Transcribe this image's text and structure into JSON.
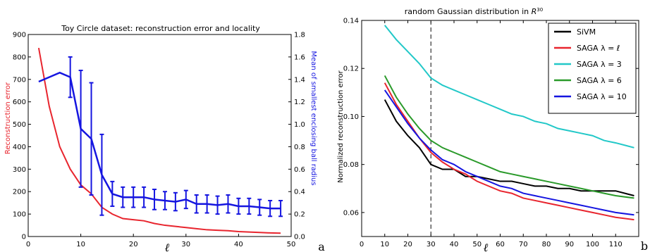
{
  "chart_data": [
    {
      "type": "line",
      "panel_label": "a",
      "title": "Toy Circle dataset: reconstruction error and locality",
      "xlabel": "ℓ",
      "ylabel_left": "Reconstruction error",
      "ylabel_right": "Mean of smallest enclosing ball radius",
      "xlim": [
        0,
        50
      ],
      "ylim_left": [
        0,
        900
      ],
      "ylim_right": [
        0,
        1.8
      ],
      "xticks": [
        0,
        10,
        20,
        30,
        40,
        50
      ],
      "yticks_left": [
        0,
        100,
        200,
        300,
        400,
        500,
        600,
        700,
        800,
        900
      ],
      "yticks_right": [
        0.0,
        0.2,
        0.4,
        0.6,
        0.8,
        1.0,
        1.2,
        1.4,
        1.6,
        1.8
      ],
      "left_color": "#e8252e",
      "right_color": "#1515e0",
      "series": [
        {
          "axis": "left",
          "color": "#e8252e",
          "x": [
            2,
            4,
            6,
            8,
            10,
            12,
            14,
            16,
            18,
            20,
            22,
            24,
            26,
            28,
            30,
            32,
            34,
            36,
            38,
            40,
            42,
            44,
            46,
            48
          ],
          "values": [
            840,
            580,
            400,
            300,
            230,
            190,
            130,
            100,
            80,
            75,
            70,
            58,
            50,
            45,
            40,
            35,
            30,
            28,
            26,
            22,
            20,
            18,
            16,
            15
          ]
        },
        {
          "axis": "right",
          "color": "#1515e0",
          "x": [
            2,
            4,
            6,
            8,
            10,
            12,
            14,
            16,
            18,
            20,
            22,
            24,
            26,
            28,
            30,
            32,
            34,
            36,
            38,
            40,
            42,
            44,
            46,
            48
          ],
          "values": [
            1.38,
            1.42,
            1.46,
            1.42,
            0.96,
            0.87,
            0.55,
            0.38,
            0.35,
            0.35,
            0.35,
            0.33,
            0.32,
            0.31,
            0.33,
            0.29,
            0.29,
            0.28,
            0.29,
            0.27,
            0.27,
            0.26,
            0.25,
            0.25
          ],
          "error": [
            0.02,
            0.02,
            0.02,
            0.18,
            0.52,
            0.5,
            0.36,
            0.11,
            0.09,
            0.09,
            0.09,
            0.09,
            0.08,
            0.08,
            0.08,
            0.08,
            0.08,
            0.08,
            0.08,
            0.07,
            0.07,
            0.07,
            0.07,
            0.07
          ]
        }
      ]
    },
    {
      "type": "line",
      "panel_label": "b",
      "title": "random Gaussian distribution in ",
      "title_math": "R",
      "title_sup": "30",
      "xlabel": "ℓ",
      "ylabel": "Normalized reconstruction error",
      "xlim": [
        0,
        120
      ],
      "ylim": [
        0.05,
        0.14
      ],
      "xticks": [
        0,
        10,
        20,
        30,
        40,
        50,
        60,
        70,
        80,
        90,
        100,
        110
      ],
      "yticks": [
        0.06,
        0.08,
        0.1,
        0.12,
        0.14
      ],
      "vline_x": 30,
      "series": [
        {
          "name": "SiVM",
          "color": "#000000",
          "x": [
            10,
            15,
            20,
            25,
            30,
            35,
            40,
            45,
            50,
            55,
            60,
            65,
            70,
            75,
            80,
            85,
            90,
            95,
            100,
            105,
            110,
            118
          ],
          "values": [
            0.107,
            0.098,
            0.092,
            0.087,
            0.08,
            0.078,
            0.078,
            0.075,
            0.075,
            0.074,
            0.073,
            0.073,
            0.072,
            0.071,
            0.071,
            0.07,
            0.07,
            0.069,
            0.069,
            0.069,
            0.069,
            0.067
          ]
        },
        {
          "name": "SAGA λ = ℓ",
          "color": "#e8252e",
          "x": [
            10,
            15,
            20,
            25,
            30,
            35,
            40,
            45,
            50,
            55,
            60,
            65,
            70,
            75,
            80,
            85,
            90,
            95,
            100,
            105,
            110,
            118
          ],
          "values": [
            0.114,
            0.105,
            0.098,
            0.091,
            0.085,
            0.081,
            0.078,
            0.076,
            0.073,
            0.071,
            0.069,
            0.068,
            0.066,
            0.065,
            0.064,
            0.063,
            0.062,
            0.061,
            0.06,
            0.059,
            0.058,
            0.057
          ]
        },
        {
          "name": "SAGA λ = 3",
          "color": "#22c8c8",
          "x": [
            10,
            15,
            20,
            25,
            30,
            35,
            40,
            45,
            50,
            55,
            60,
            65,
            70,
            75,
            80,
            85,
            90,
            95,
            100,
            105,
            110,
            118
          ],
          "values": [
            0.138,
            0.132,
            0.127,
            0.122,
            0.116,
            0.113,
            0.111,
            0.109,
            0.107,
            0.105,
            0.103,
            0.101,
            0.1,
            0.098,
            0.097,
            0.095,
            0.094,
            0.093,
            0.092,
            0.09,
            0.089,
            0.087
          ]
        },
        {
          "name": "SAGA λ = 6",
          "color": "#2a9a2a",
          "x": [
            10,
            15,
            20,
            25,
            30,
            35,
            40,
            45,
            50,
            55,
            60,
            65,
            70,
            75,
            80,
            85,
            90,
            95,
            100,
            105,
            110,
            118
          ],
          "values": [
            0.117,
            0.108,
            0.101,
            0.095,
            0.09,
            0.087,
            0.085,
            0.083,
            0.081,
            0.079,
            0.077,
            0.076,
            0.075,
            0.074,
            0.073,
            0.072,
            0.071,
            0.07,
            0.069,
            0.068,
            0.067,
            0.066
          ]
        },
        {
          "name": "SAGA λ = 10",
          "color": "#1515e0",
          "x": [
            10,
            15,
            20,
            25,
            30,
            35,
            40,
            45,
            50,
            55,
            60,
            65,
            70,
            75,
            80,
            85,
            90,
            95,
            100,
            105,
            110,
            118
          ],
          "values": [
            0.111,
            0.104,
            0.097,
            0.091,
            0.086,
            0.082,
            0.08,
            0.077,
            0.075,
            0.073,
            0.071,
            0.07,
            0.068,
            0.067,
            0.066,
            0.065,
            0.064,
            0.063,
            0.062,
            0.061,
            0.06,
            0.059
          ]
        }
      ],
      "legend_position": "top-right"
    }
  ]
}
